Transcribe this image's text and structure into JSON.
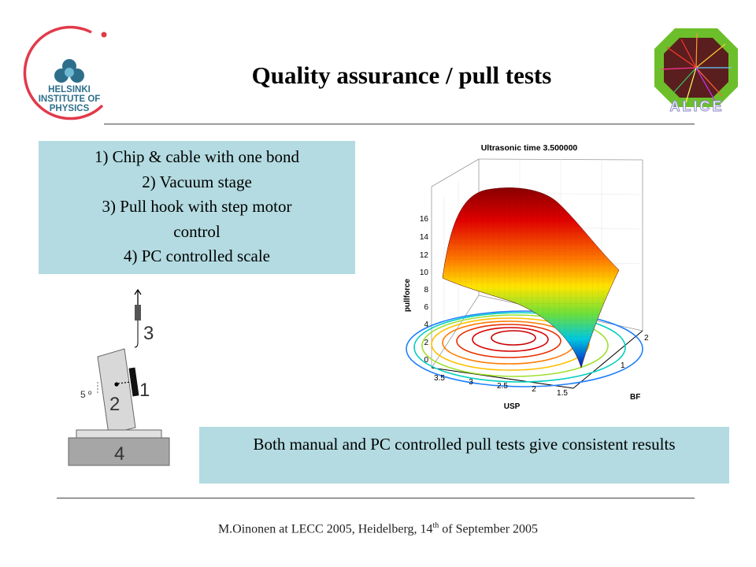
{
  "header": {
    "title": "Quality assurance / pull tests",
    "hip_logo_lines": [
      "HELSINKI",
      "INSTITUTE OF",
      "PHYSICS"
    ],
    "alice_logo_text": "ALICE"
  },
  "list": {
    "items": [
      "1) Chip & cable with one bond",
      "2) Vacuum stage",
      "3) Pull hook with step motor",
      "control",
      "4) PC controlled scale"
    ]
  },
  "diagram": {
    "labels": {
      "hook": "3",
      "chip": "1",
      "stage": "2",
      "scale": "4",
      "angle": "5 º"
    }
  },
  "plot": {
    "title": "Ultrasonic time 3.500000",
    "zlabel": "pullforce",
    "xlabel": "USP",
    "ylabel": "BF",
    "z_ticks": [
      "16",
      "14",
      "12",
      "10",
      "8",
      "6",
      "4",
      "2",
      "0"
    ],
    "x_ticks": [
      "3.5",
      "3",
      "2.5",
      "2",
      "1.5"
    ],
    "y_ticks": [
      "2",
      "1"
    ]
  },
  "result": {
    "text": "Both manual and PC controlled pull tests give consistent results"
  },
  "footer": {
    "text_before": "M.Oinonen at LECC 2005, Heidelberg, 14",
    "sup": "th",
    "text_after": " of September 2005"
  },
  "colors": {
    "box_fill": "#b3dbe1",
    "hip_ring": "#e13a4a",
    "hip_text": "#2d6f8b",
    "alice_octagon": "#6cbf2a"
  }
}
